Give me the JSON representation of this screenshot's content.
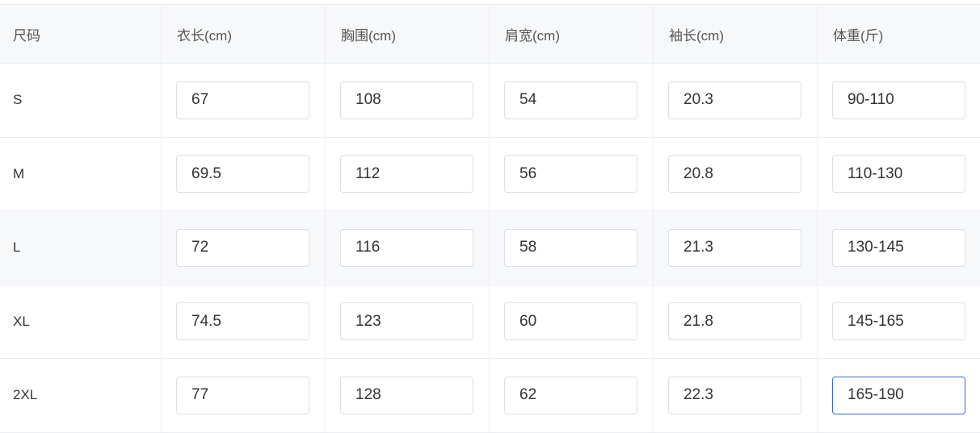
{
  "table": {
    "columns": [
      "尺码",
      "衣长(cm)",
      "胸围(cm)",
      "肩宽(cm)",
      "袖长(cm)",
      "体重(斤)"
    ],
    "rows": [
      {
        "size": "S",
        "values": [
          "67",
          "108",
          "54",
          "20.3",
          "90-110"
        ]
      },
      {
        "size": "M",
        "values": [
          "69.5",
          "112",
          "56",
          "20.8",
          "110-130"
        ]
      },
      {
        "size": "L",
        "values": [
          "72",
          "116",
          "58",
          "21.3",
          "130-145"
        ]
      },
      {
        "size": "XL",
        "values": [
          "74.5",
          "123",
          "60",
          "21.8",
          "145-165"
        ]
      },
      {
        "size": "2XL",
        "values": [
          "77",
          "128",
          "62",
          "22.3",
          "165-190"
        ]
      }
    ],
    "hovered_row": "L",
    "colors": {
      "focus_border": "#2f6fd8",
      "header_bg": "#f7f8fa",
      "border": "#ebeef5"
    }
  }
}
